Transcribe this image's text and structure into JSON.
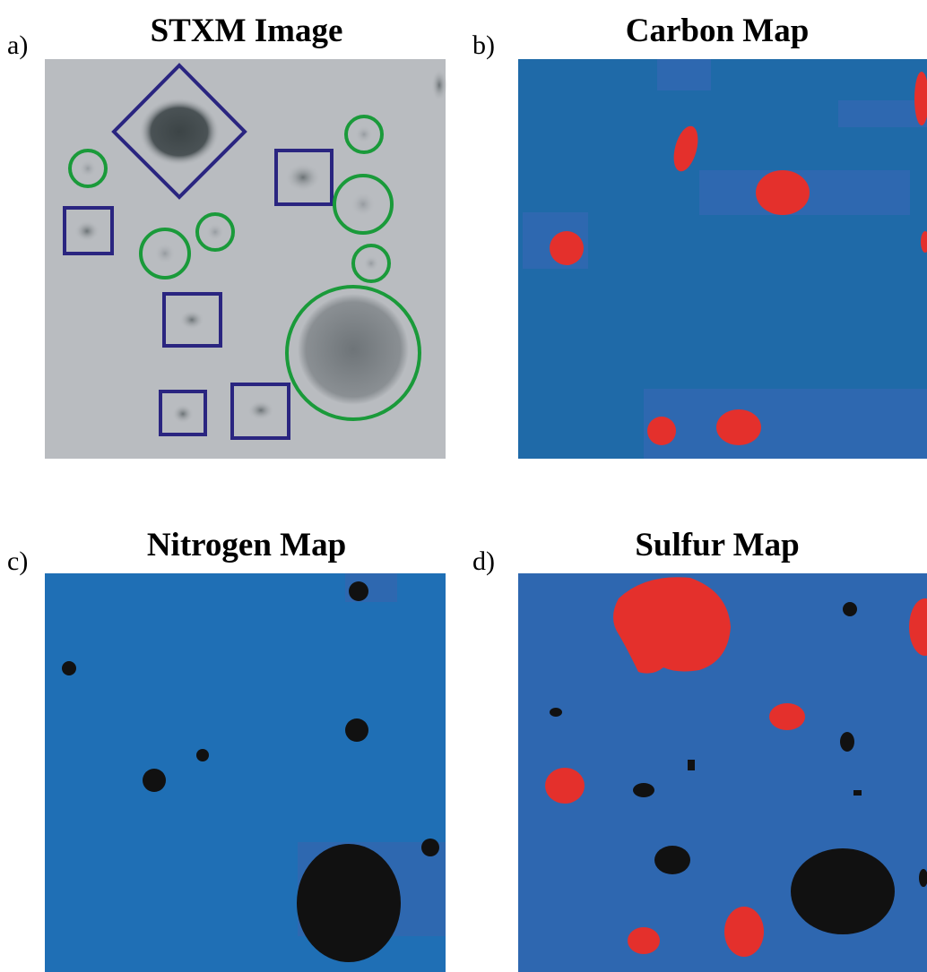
{
  "panels": [
    {
      "label": "a)",
      "title": "STXM Image"
    },
    {
      "label": "b)",
      "title": "Carbon Map"
    },
    {
      "label": "c)",
      "title": "Nitrogen Map"
    },
    {
      "label": "d)",
      "title": "Sulfur Map"
    }
  ]
}
